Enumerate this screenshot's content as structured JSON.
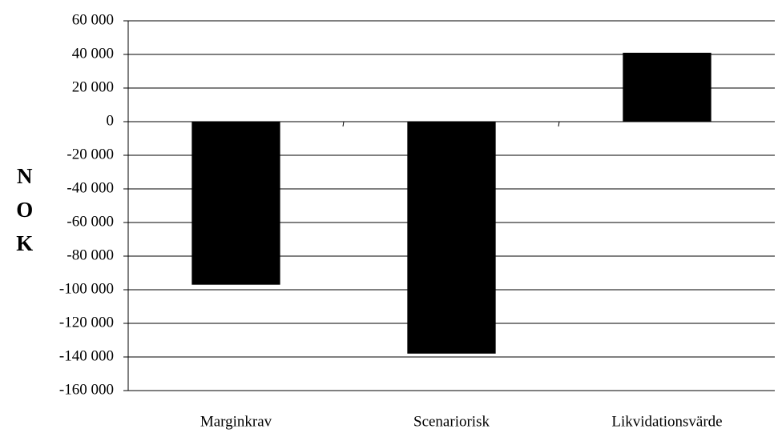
{
  "chart_data": {
    "type": "bar",
    "y_label": "NOK",
    "categories": [
      "Marginkrav",
      "Scenariorisk",
      "Likvidationsvärde"
    ],
    "values": [
      -97000,
      -138000,
      41000
    ],
    "color": "#000000",
    "ylim": [
      -160000,
      60000
    ],
    "yticks": [
      {
        "value": -160000,
        "label": "-160 000"
      },
      {
        "value": -140000,
        "label": "-140 000"
      },
      {
        "value": -120000,
        "label": "-120 000"
      },
      {
        "value": -100000,
        "label": "-100 000"
      },
      {
        "value": -80000,
        "label": "-80 000"
      },
      {
        "value": -60000,
        "label": "-60 000"
      },
      {
        "value": -40000,
        "label": "-40 000"
      },
      {
        "value": -20000,
        "label": "-20 000"
      },
      0,
      {
        "value": 20000,
        "label": "20 000"
      },
      {
        "value": 40000,
        "label": "40 000"
      },
      {
        "value": 60000,
        "label": "60 000"
      }
    ],
    "grid": true
  }
}
